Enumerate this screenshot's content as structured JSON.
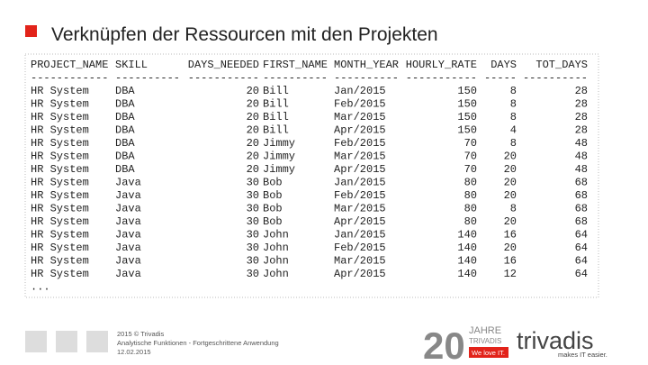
{
  "header": {
    "title": "Verknüpfen der Ressourcen mit den Projekten"
  },
  "table": {
    "columns": [
      "PROJECT_NAME",
      "SKILL",
      "DAYS_NEEDED",
      "FIRST_NAME",
      "MONTH_YEAR",
      "HOURLY_RATE",
      "DAYS",
      "TOT_DAYS"
    ],
    "rules": [
      "------------",
      "----------",
      "-----------",
      "----------",
      "----------",
      "-----------",
      "-----",
      "----------"
    ],
    "rows": [
      [
        "HR System",
        "DBA",
        20,
        "Bill",
        "Jan/2015",
        150,
        8,
        28
      ],
      [
        "HR System",
        "DBA",
        20,
        "Bill",
        "Feb/2015",
        150,
        8,
        28
      ],
      [
        "HR System",
        "DBA",
        20,
        "Bill",
        "Mar/2015",
        150,
        8,
        28
      ],
      [
        "HR System",
        "DBA",
        20,
        "Bill",
        "Apr/2015",
        150,
        4,
        28
      ],
      [
        "HR System",
        "DBA",
        20,
        "Jimmy",
        "Feb/2015",
        70,
        8,
        48
      ],
      [
        "HR System",
        "DBA",
        20,
        "Jimmy",
        "Mar/2015",
        70,
        20,
        48
      ],
      [
        "HR System",
        "DBA",
        20,
        "Jimmy",
        "Apr/2015",
        70,
        20,
        48
      ],
      [
        "HR System",
        "Java",
        30,
        "Bob",
        "Jan/2015",
        80,
        20,
        68
      ],
      [
        "HR System",
        "Java",
        30,
        "Bob",
        "Feb/2015",
        80,
        20,
        68
      ],
      [
        "HR System",
        "Java",
        30,
        "Bob",
        "Mar/2015",
        80,
        8,
        68
      ],
      [
        "HR System",
        "Java",
        30,
        "Bob",
        "Apr/2015",
        80,
        20,
        68
      ],
      [
        "HR System",
        "Java",
        30,
        "John",
        "Jan/2015",
        140,
        16,
        64
      ],
      [
        "HR System",
        "Java",
        30,
        "John",
        "Feb/2015",
        140,
        20,
        64
      ],
      [
        "HR System",
        "Java",
        30,
        "John",
        "Mar/2015",
        140,
        16,
        64
      ],
      [
        "HR System",
        "Java",
        30,
        "John",
        "Apr/2015",
        140,
        12,
        64
      ]
    ],
    "ellipsis": "..."
  },
  "footer": {
    "lines": [
      "2015 © Trivadis",
      "Analytische Funktionen - Fortgeschrittene Anwendung",
      "12.02.2015"
    ]
  },
  "logo": {
    "years": "20",
    "jahre": "JAHRE",
    "company_small": "TRIVADIS",
    "slogan_box": "We love IT.",
    "brand": "trivadis",
    "tagline": "makes IT easier."
  }
}
